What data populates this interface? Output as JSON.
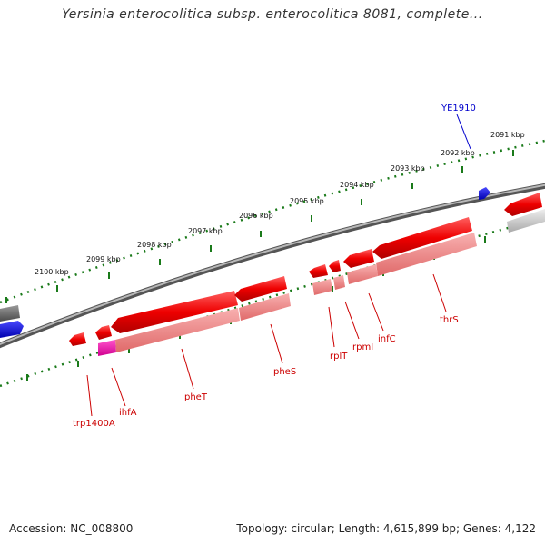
{
  "title": "Yersinia enterocolitica subsp. enterocolitica 8081, complete...",
  "footer": {
    "accession": "Accession: NC_008800",
    "stats": "Topology: circular; Length: 4,615,899 bp; Genes: 4,122"
  },
  "colors": {
    "gene_label": "#cc0000",
    "feature_label": "#0000cc",
    "tick": "#1a7a1a",
    "backbone": "#808080"
  },
  "ticks": [
    "2100 kbp",
    "2099 kbp",
    "2098 kbp",
    "2097 kbp",
    "2096 kbp",
    "2095 kbp",
    "2094 kbp",
    "2093 kbp",
    "2092 kbp",
    "2091 kbp"
  ],
  "gene_labels": [
    "trp1400A",
    "ihfA",
    "pheT",
    "pheS",
    "rplT",
    "rpmI",
    "infC",
    "thrS"
  ],
  "feature_labels": [
    "YE1910"
  ]
}
